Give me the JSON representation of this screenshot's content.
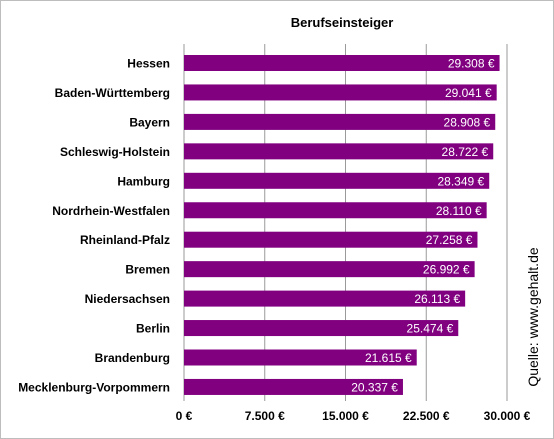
{
  "chart_data": {
    "type": "bar",
    "orientation": "horizontal",
    "title": "Berufseinsteiger",
    "categories": [
      "Hessen",
      "Baden-Württemberg",
      "Bayern",
      "Schleswig-Holstein",
      "Hamburg",
      "Nordrhein-Westfalen",
      "Rheinland-Pfalz",
      "Bremen",
      "Niedersachsen",
      "Berlin",
      "Brandenburg",
      "Mecklenburg-Vorpommern"
    ],
    "values": [
      29308,
      29041,
      28908,
      28722,
      28349,
      28110,
      27258,
      26992,
      26113,
      25474,
      21615,
      20337
    ],
    "value_labels": [
      "29.308 €",
      "29.041 €",
      "28.908 €",
      "28.722 €",
      "28.349 €",
      "28.110 €",
      "27.258 €",
      "26.992 €",
      "26.113 €",
      "25.474 €",
      "21.615 €",
      "20.337 €"
    ],
    "xlim": [
      0,
      30000
    ],
    "x_ticks": [
      0,
      7500,
      15000,
      22500,
      30000
    ],
    "x_tick_labels": [
      "0 €",
      "7.500 €",
      "15.000 €",
      "22.500 €",
      "30.000 €"
    ],
    "grid": true,
    "bar_color": "#800080",
    "label_color": "#ffffff",
    "source_note": "Quelle: www.gehalt.de"
  }
}
